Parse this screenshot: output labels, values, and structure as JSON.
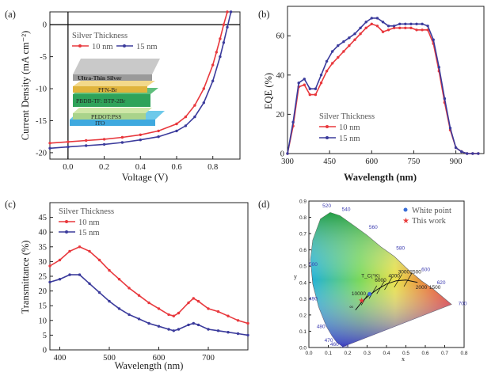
{
  "colors": {
    "series_10nm": "#e8383d",
    "series_15nm": "#3b3b9c",
    "axis": "#222222"
  },
  "chart_data": [
    {
      "panel": "(a)",
      "type": "line",
      "xlabel": "Voltage (V)",
      "ylabel": "Current Density (mA cm⁻²)",
      "xlim": [
        -0.1,
        0.95
      ],
      "ylim": [
        -21,
        2
      ],
      "xticks": [
        0.0,
        0.2,
        0.4,
        0.6,
        0.8
      ],
      "yticks": [
        0,
        -5,
        -10,
        -15,
        -20
      ],
      "legend_title": "Silver Thickness",
      "inset_layers": [
        "Ultra-Thin Silver",
        "PFN-Br",
        "PBDB-TF: BTP-2Br",
        "PEDOT:PSS",
        "ITO"
      ],
      "series": [
        {
          "name": "10 nm",
          "x": [
            -0.1,
            0.0,
            0.1,
            0.2,
            0.3,
            0.4,
            0.5,
            0.6,
            0.65,
            0.7,
            0.75,
            0.8,
            0.82,
            0.84,
            0.86,
            0.88
          ],
          "y": [
            -18.5,
            -18.3,
            -18.1,
            -17.9,
            -17.6,
            -17.2,
            -16.6,
            -15.5,
            -14.4,
            -12.6,
            -10.0,
            -6.3,
            -4.3,
            -2.2,
            0,
            2.5
          ]
        },
        {
          "name": "15 nm",
          "x": [
            -0.1,
            0.0,
            0.1,
            0.2,
            0.3,
            0.4,
            0.5,
            0.6,
            0.65,
            0.7,
            0.75,
            0.8,
            0.84,
            0.86,
            0.88,
            0.9
          ],
          "y": [
            -19.3,
            -19.1,
            -18.9,
            -18.7,
            -18.4,
            -18.0,
            -17.5,
            -16.6,
            -15.8,
            -14.4,
            -12.2,
            -8.8,
            -5.0,
            -2.8,
            -0.4,
            2.5
          ]
        }
      ]
    },
    {
      "panel": "(b)",
      "type": "line",
      "xlabel": "Wavelength (nm)",
      "ylabel": "EQE (%)",
      "xlim": [
        300,
        1000
      ],
      "ylim": [
        0,
        75
      ],
      "xticks": [
        300,
        450,
        600,
        750,
        900
      ],
      "yticks": [
        0,
        20,
        40,
        60
      ],
      "legend_title": "Silver Thickness",
      "series": [
        {
          "name": "10 nm",
          "x": [
            300,
            320,
            340,
            360,
            380,
            400,
            420,
            440,
            460,
            480,
            500,
            520,
            540,
            560,
            580,
            600,
            620,
            640,
            660,
            680,
            700,
            720,
            740,
            760,
            780,
            800,
            820,
            840,
            860,
            880,
            900,
            920,
            940,
            960,
            980
          ],
          "y": [
            0,
            14,
            34,
            35,
            30,
            30,
            36,
            42,
            46,
            49,
            52,
            55,
            58,
            61,
            64,
            66,
            65,
            62,
            63,
            64,
            64,
            64,
            64,
            63,
            63,
            63,
            56,
            42,
            26,
            12,
            3,
            1,
            0,
            0,
            0
          ]
        },
        {
          "name": "15 nm",
          "x": [
            300,
            320,
            340,
            360,
            380,
            400,
            420,
            440,
            460,
            480,
            500,
            520,
            540,
            560,
            580,
            600,
            620,
            640,
            660,
            680,
            700,
            720,
            740,
            760,
            780,
            800,
            820,
            840,
            860,
            880,
            900,
            920,
            940,
            960,
            980
          ],
          "y": [
            0,
            16,
            36,
            38,
            33,
            33,
            40,
            47,
            52,
            55,
            57,
            59,
            61,
            64,
            67,
            69,
            69,
            67,
            65,
            65,
            66,
            66,
            66,
            66,
            66,
            65,
            58,
            44,
            28,
            13,
            3,
            1,
            0,
            0,
            0
          ]
        }
      ]
    },
    {
      "panel": "(c)",
      "type": "line",
      "xlabel": "Wavelength (nm)",
      "ylabel": "Transmittance (%)",
      "xlim": [
        380,
        780
      ],
      "ylim": [
        0,
        50
      ],
      "xticks": [
        400,
        500,
        600,
        700
      ],
      "yticks": [
        0,
        5,
        10,
        15,
        20,
        25,
        30,
        35,
        40,
        45
      ],
      "legend_title": "Silver Thickness",
      "series": [
        {
          "name": "10 nm",
          "x": [
            380,
            400,
            420,
            440,
            460,
            480,
            500,
            520,
            540,
            560,
            580,
            600,
            620,
            630,
            640,
            660,
            670,
            680,
            700,
            720,
            740,
            760,
            780
          ],
          "y": [
            28.5,
            30.5,
            33.5,
            35,
            33.5,
            30.5,
            27,
            24,
            21,
            18.5,
            16,
            14,
            12,
            11.5,
            12.5,
            16,
            17.5,
            16.5,
            14,
            13,
            11.5,
            10,
            9
          ]
        },
        {
          "name": "15 nm",
          "x": [
            380,
            400,
            420,
            440,
            460,
            480,
            500,
            520,
            540,
            560,
            580,
            600,
            620,
            630,
            640,
            660,
            670,
            680,
            700,
            720,
            740,
            760,
            780
          ],
          "y": [
            23,
            24,
            25.5,
            25.5,
            22.5,
            19.5,
            16.5,
            14,
            12,
            10.5,
            9,
            8,
            7,
            6.5,
            7,
            8.5,
            9,
            8.5,
            7,
            6.5,
            6,
            5.5,
            5
          ]
        }
      ]
    },
    {
      "panel": "(d)",
      "type": "scatter",
      "xlabel": "x",
      "ylabel": "y",
      "xlim": [
        0,
        0.8
      ],
      "ylim": [
        0,
        0.9
      ],
      "xticks": [
        0.0,
        0.1,
        0.2,
        0.3,
        0.4,
        0.5,
        0.6,
        0.7,
        0.8
      ],
      "yticks": [
        0.0,
        0.1,
        0.2,
        0.3,
        0.4,
        0.5,
        0.6,
        0.7,
        0.8,
        0.9
      ],
      "legend": [
        "White point",
        "This work"
      ],
      "series": [
        {
          "name": "White point",
          "x": [
            0.313
          ],
          "y": [
            0.329
          ]
        },
        {
          "name": "This work",
          "x": [
            0.27
          ],
          "y": [
            0.29
          ]
        }
      ],
      "locus_labels": [
        "520",
        "540",
        "560",
        "580",
        "600",
        "620",
        "700",
        "500",
        "490",
        "480",
        "470",
        "460",
        "380"
      ],
      "cct_labels": [
        "T_C(°K)",
        "10000",
        "6000",
        "4000",
        "3000",
        "2500",
        "2000",
        "1500",
        "∞"
      ]
    }
  ]
}
